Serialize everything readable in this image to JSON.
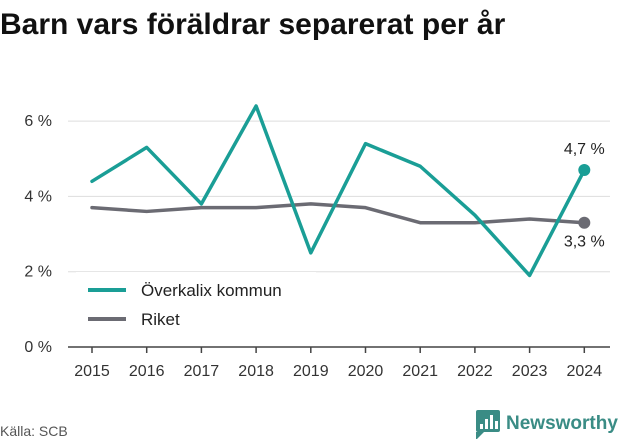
{
  "title": "Barn vars föräldrar separerat per år",
  "source": "Källa: SCB",
  "brand": {
    "name": "Newsworthy",
    "color": "#3a8c85"
  },
  "chart_data": {
    "type": "line",
    "x": [
      "2015",
      "2016",
      "2017",
      "2018",
      "2019",
      "2020",
      "2021",
      "2022",
      "2023",
      "2024"
    ],
    "series": [
      {
        "name": "Överkalix kommun",
        "color": "#1a9e96",
        "values": [
          4.4,
          5.3,
          3.8,
          6.4,
          2.5,
          5.4,
          4.8,
          3.5,
          1.9,
          4.7
        ],
        "end_label": "4,7 %"
      },
      {
        "name": "Riket",
        "color": "#6b6b73",
        "values": [
          3.7,
          3.6,
          3.7,
          3.7,
          3.8,
          3.7,
          3.3,
          3.3,
          3.4,
          3.3
        ],
        "end_label": "3,3 %"
      }
    ],
    "y_ticks": [
      {
        "value": 0,
        "label": "0 %"
      },
      {
        "value": 2,
        "label": "2 %"
      },
      {
        "value": 4,
        "label": "4 %"
      },
      {
        "value": 6,
        "label": "6 %"
      }
    ],
    "ylim": [
      0,
      6.4
    ],
    "grid": true,
    "legend_position": "bottom-left"
  }
}
